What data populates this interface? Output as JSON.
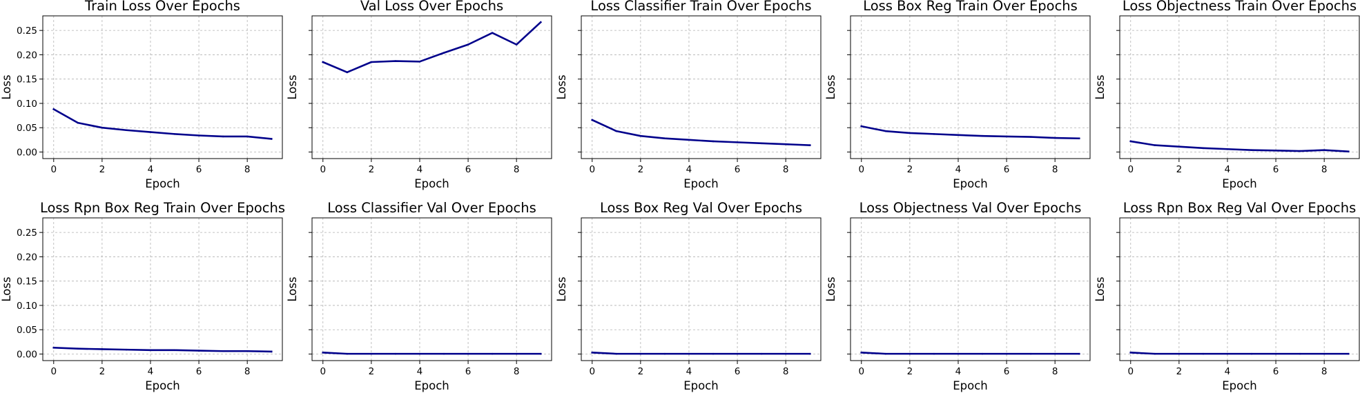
{
  "chart_data": [
    {
      "type": "line",
      "title": "Train Loss Over Epochs",
      "xlabel": "Epoch",
      "ylabel": "Loss",
      "x": [
        0,
        1,
        2,
        3,
        4,
        5,
        6,
        7,
        8,
        9
      ],
      "series": [
        {
          "values": [
            0.088,
            0.06,
            0.05,
            0.045,
            0.041,
            0.037,
            0.034,
            0.032,
            0.032,
            0.027
          ]
        }
      ],
      "xlim": [
        -0.45,
        9.45
      ],
      "ylim": [
        -0.0135,
        0.28
      ],
      "xticks": [
        0,
        2,
        4,
        6,
        8
      ],
      "xtick_labels": [
        "0",
        "2",
        "4",
        "6",
        "8"
      ],
      "yticks": [
        0,
        0.05,
        0.1,
        0.15,
        0.2,
        0.25
      ],
      "ytick_labels": [
        "0.00",
        "0.05",
        "0.10",
        "0.15",
        "0.20",
        "0.25"
      ],
      "show_ytick_labels": true,
      "grid": true,
      "color": "#00008b"
    },
    {
      "type": "line",
      "title": "Val Loss Over Epochs",
      "xlabel": "Epoch",
      "ylabel": "Loss",
      "x": [
        0,
        1,
        2,
        3,
        4,
        5,
        6,
        7,
        8,
        9
      ],
      "series": [
        {
          "values": [
            0.185,
            0.164,
            0.185,
            0.187,
            0.186,
            0.204,
            0.221,
            0.245,
            0.221,
            0.267
          ]
        }
      ],
      "xlim": [
        -0.45,
        9.45
      ],
      "ylim": [
        -0.0135,
        0.28
      ],
      "xticks": [
        0,
        2,
        4,
        6,
        8
      ],
      "xtick_labels": [
        "0",
        "2",
        "4",
        "6",
        "8"
      ],
      "yticks": [
        0,
        0.05,
        0.1,
        0.15,
        0.2,
        0.25
      ],
      "show_ytick_labels": false,
      "grid": true,
      "color": "#00008b"
    },
    {
      "type": "line",
      "title": "Loss Classifier Train Over Epochs",
      "xlabel": "Epoch",
      "ylabel": "Loss",
      "x": [
        0,
        1,
        2,
        3,
        4,
        5,
        6,
        7,
        8,
        9
      ],
      "series": [
        {
          "values": [
            0.066,
            0.043,
            0.033,
            0.028,
            0.025,
            0.022,
            0.02,
            0.018,
            0.016,
            0.014
          ]
        }
      ],
      "xlim": [
        -0.45,
        9.45
      ],
      "ylim": [
        -0.0135,
        0.28
      ],
      "xticks": [
        0,
        2,
        4,
        6,
        8
      ],
      "xtick_labels": [
        "0",
        "2",
        "4",
        "6",
        "8"
      ],
      "yticks": [
        0,
        0.05,
        0.1,
        0.15,
        0.2,
        0.25
      ],
      "show_ytick_labels": false,
      "grid": true,
      "color": "#00008b"
    },
    {
      "type": "line",
      "title": "Loss Box Reg Train Over Epochs",
      "xlabel": "Epoch",
      "ylabel": "Loss",
      "x": [
        0,
        1,
        2,
        3,
        4,
        5,
        6,
        7,
        8,
        9
      ],
      "series": [
        {
          "values": [
            0.053,
            0.043,
            0.039,
            0.037,
            0.035,
            0.033,
            0.032,
            0.031,
            0.029,
            0.028
          ]
        }
      ],
      "xlim": [
        -0.45,
        9.45
      ],
      "ylim": [
        -0.0135,
        0.28
      ],
      "xticks": [
        0,
        2,
        4,
        6,
        8
      ],
      "xtick_labels": [
        "0",
        "2",
        "4",
        "6",
        "8"
      ],
      "yticks": [
        0,
        0.05,
        0.1,
        0.15,
        0.2,
        0.25
      ],
      "show_ytick_labels": false,
      "grid": true,
      "color": "#00008b"
    },
    {
      "type": "line",
      "title": "Loss Objectness Train Over Epochs",
      "xlabel": "Epoch",
      "ylabel": "Loss",
      "x": [
        0,
        1,
        2,
        3,
        4,
        5,
        6,
        7,
        8,
        9
      ],
      "series": [
        {
          "values": [
            0.022,
            0.014,
            0.011,
            0.008,
            0.006,
            0.004,
            0.003,
            0.002,
            0.004,
            0.001
          ]
        }
      ],
      "xlim": [
        -0.45,
        9.45
      ],
      "ylim": [
        -0.0135,
        0.28
      ],
      "xticks": [
        0,
        2,
        4,
        6,
        8
      ],
      "xtick_labels": [
        "0",
        "2",
        "4",
        "6",
        "8"
      ],
      "yticks": [
        0,
        0.05,
        0.1,
        0.15,
        0.2,
        0.25
      ],
      "show_ytick_labels": false,
      "grid": true,
      "color": "#00008b"
    },
    {
      "type": "line",
      "title": "Loss Rpn Box Reg Train Over Epochs",
      "xlabel": "Epoch",
      "ylabel": "Loss",
      "x": [
        0,
        1,
        2,
        3,
        4,
        5,
        6,
        7,
        8,
        9
      ],
      "series": [
        {
          "values": [
            0.013,
            0.011,
            0.01,
            0.009,
            0.008,
            0.008,
            0.007,
            0.006,
            0.006,
            0.005
          ]
        }
      ],
      "xlim": [
        -0.45,
        9.45
      ],
      "ylim": [
        -0.0135,
        0.28
      ],
      "xticks": [
        0,
        2,
        4,
        6,
        8
      ],
      "xtick_labels": [
        "0",
        "2",
        "4",
        "6",
        "8"
      ],
      "yticks": [
        0,
        0.05,
        0.1,
        0.15,
        0.2,
        0.25
      ],
      "ytick_labels": [
        "0.00",
        "0.05",
        "0.10",
        "0.15",
        "0.20",
        "0.25"
      ],
      "show_ytick_labels": true,
      "grid": true,
      "color": "#00008b"
    },
    {
      "type": "line",
      "title": "Loss Classifier Val Over Epochs",
      "xlabel": "Epoch",
      "ylabel": "Loss",
      "x": [
        0,
        1,
        2,
        3,
        4,
        5,
        6,
        7,
        8,
        9
      ],
      "series": [
        {
          "values": [
            0.003,
            0.0005,
            0.0005,
            0.0005,
            0.0005,
            0.0005,
            0.0005,
            0.0005,
            0.0005,
            0.0005
          ]
        }
      ],
      "xlim": [
        -0.45,
        9.45
      ],
      "ylim": [
        -0.0135,
        0.28
      ],
      "xticks": [
        0,
        2,
        4,
        6,
        8
      ],
      "xtick_labels": [
        "0",
        "2",
        "4",
        "6",
        "8"
      ],
      "yticks": [
        0,
        0.05,
        0.1,
        0.15,
        0.2,
        0.25
      ],
      "show_ytick_labels": false,
      "grid": true,
      "color": "#00008b"
    },
    {
      "type": "line",
      "title": "Loss Box Reg Val Over Epochs",
      "xlabel": "Epoch",
      "ylabel": "Loss",
      "x": [
        0,
        1,
        2,
        3,
        4,
        5,
        6,
        7,
        8,
        9
      ],
      "series": [
        {
          "values": [
            0.003,
            0.0005,
            0.0005,
            0.0005,
            0.0005,
            0.0005,
            0.0005,
            0.0005,
            0.0005,
            0.0005
          ]
        }
      ],
      "xlim": [
        -0.45,
        9.45
      ],
      "ylim": [
        -0.0135,
        0.28
      ],
      "xticks": [
        0,
        2,
        4,
        6,
        8
      ],
      "xtick_labels": [
        "0",
        "2",
        "4",
        "6",
        "8"
      ],
      "yticks": [
        0,
        0.05,
        0.1,
        0.15,
        0.2,
        0.25
      ],
      "show_ytick_labels": false,
      "grid": true,
      "color": "#00008b"
    },
    {
      "type": "line",
      "title": "Loss Objectness Val Over Epochs",
      "xlabel": "Epoch",
      "ylabel": "Loss",
      "x": [
        0,
        1,
        2,
        3,
        4,
        5,
        6,
        7,
        8,
        9
      ],
      "series": [
        {
          "values": [
            0.003,
            0.0005,
            0.0005,
            0.0005,
            0.0005,
            0.0005,
            0.0005,
            0.0005,
            0.0005,
            0.0005
          ]
        }
      ],
      "xlim": [
        -0.45,
        9.45
      ],
      "ylim": [
        -0.0135,
        0.28
      ],
      "xticks": [
        0,
        2,
        4,
        6,
        8
      ],
      "xtick_labels": [
        "0",
        "2",
        "4",
        "6",
        "8"
      ],
      "yticks": [
        0,
        0.05,
        0.1,
        0.15,
        0.2,
        0.25
      ],
      "show_ytick_labels": false,
      "grid": true,
      "color": "#00008b"
    },
    {
      "type": "line",
      "title": "Loss Rpn Box Reg Val Over Epochs",
      "xlabel": "Epoch",
      "ylabel": "Loss",
      "x": [
        0,
        1,
        2,
        3,
        4,
        5,
        6,
        7,
        8,
        9
      ],
      "series": [
        {
          "values": [
            0.003,
            0.0005,
            0.0005,
            0.0005,
            0.0005,
            0.0005,
            0.0005,
            0.0005,
            0.0005,
            0.0005
          ]
        }
      ],
      "xlim": [
        -0.45,
        9.45
      ],
      "ylim": [
        -0.0135,
        0.28
      ],
      "xticks": [
        0,
        2,
        4,
        6,
        8
      ],
      "xtick_labels": [
        "0",
        "2",
        "4",
        "6",
        "8"
      ],
      "yticks": [
        0,
        0.05,
        0.1,
        0.15,
        0.2,
        0.25
      ],
      "show_ytick_labels": false,
      "grid": true,
      "color": "#00008b"
    }
  ]
}
